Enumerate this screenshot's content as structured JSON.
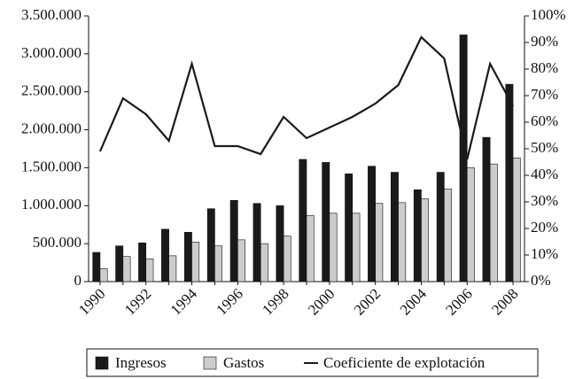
{
  "chart_data": {
    "type": "bar",
    "categories": [
      "1990",
      null,
      "1992",
      null,
      "1994",
      null,
      "1996",
      null,
      "1998",
      null,
      "2000",
      null,
      "2002",
      null,
      "2004",
      null,
      "2006",
      null,
      "2008"
    ],
    "series": [
      {
        "name": "Ingresos",
        "color": "#1a1a1a",
        "values": [
          385000,
          470000,
          510000,
          690000,
          650000,
          960000,
          1070000,
          1030000,
          1000000,
          1610000,
          1570000,
          1420000,
          1520000,
          1440000,
          1210000,
          1440000,
          3250000,
          1900000,
          2600000
        ]
      },
      {
        "name": "Gastos",
        "color": "#cccccc",
        "values": [
          170000,
          330000,
          300000,
          340000,
          520000,
          470000,
          550000,
          500000,
          600000,
          870000,
          900000,
          900000,
          1030000,
          1040000,
          1090000,
          1220000,
          1500000,
          1550000,
          1630000
        ]
      },
      {
        "name": "Coeficiente de explotación",
        "color": "#1a1a1a",
        "type": "line",
        "axis": "y2",
        "values": [
          49,
          69,
          63,
          53,
          82,
          51,
          51,
          48,
          62,
          54,
          58,
          62,
          67,
          74,
          92,
          84,
          46,
          82,
          66
        ]
      }
    ],
    "ylim": [
      0,
      3500000
    ],
    "yticks": [
      0,
      {
        "value": 500000,
        "label": "500.000"
      },
      {
        "value": 1000000,
        "label": "1.000.000"
      },
      {
        "value": 1500000,
        "label": "1.500.000"
      },
      {
        "value": 2000000,
        "label": "2.000.000"
      },
      {
        "value": 2500000,
        "label": "2.500.000"
      },
      {
        "value": 3000000,
        "label": "3.000.000"
      },
      {
        "value": 3500000,
        "label": "3.500.000"
      }
    ],
    "y2lim": [
      0,
      100
    ],
    "y2ticks": [
      {
        "value": 0,
        "label": "0%"
      },
      {
        "value": 10,
        "label": "10%"
      },
      {
        "value": 20,
        "label": "20%"
      },
      {
        "value": 30,
        "label": "30%"
      },
      {
        "value": 40,
        "label": "40%"
      },
      {
        "value": 50,
        "label": "50%"
      },
      {
        "value": 60,
        "label": "60%"
      },
      {
        "value": 70,
        "label": "70%"
      },
      {
        "value": 80,
        "label": "80%"
      },
      {
        "value": 90,
        "label": "90%"
      },
      {
        "value": 100,
        "label": "100%"
      }
    ],
    "grid": false,
    "legend": "bottom"
  }
}
